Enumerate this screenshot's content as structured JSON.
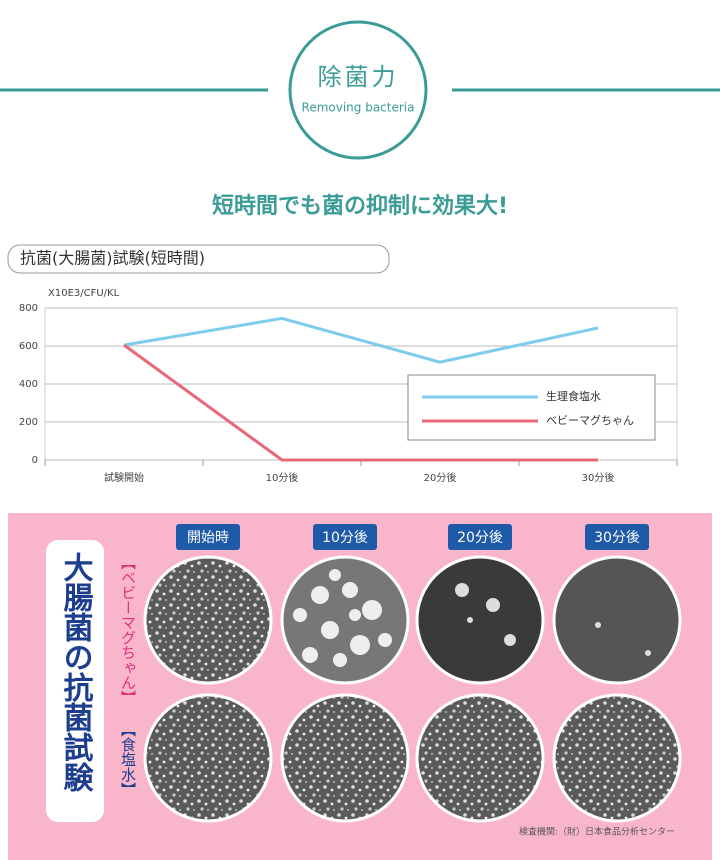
{
  "header": {
    "title": "除菌力",
    "subtitle": "Removing bacteria"
  },
  "headline": "短時間でも菌の抑制に効果大!",
  "section_label": "抗菌(大腸菌)試験(短時間)",
  "chart_data": {
    "type": "line",
    "y_label": "X10E3/CFU/KL",
    "categories": [
      "試験開始",
      "10分後",
      "20分後",
      "30分後"
    ],
    "series": [
      {
        "name": "生理食塩水",
        "color": "#7ecbee",
        "values": [
          605,
          745,
          515,
          695
        ]
      },
      {
        "name": "ベビーマグちゃん",
        "color": "#e8687a",
        "values": [
          605,
          0,
          0,
          0
        ]
      }
    ],
    "ylim": [
      0,
      800
    ],
    "yticks": [
      0,
      200,
      400,
      600,
      800
    ],
    "grid": true,
    "legend": "lower right"
  },
  "panel": {
    "title": "大腸菌の抗菌試験",
    "columns": [
      "開始時",
      "10分後",
      "20分後",
      "30分後"
    ],
    "rows": [
      "【ベビーマグちゃん】",
      "【食塩水】"
    ],
    "source": "検査機関:（財）日本食品分析センター"
  }
}
